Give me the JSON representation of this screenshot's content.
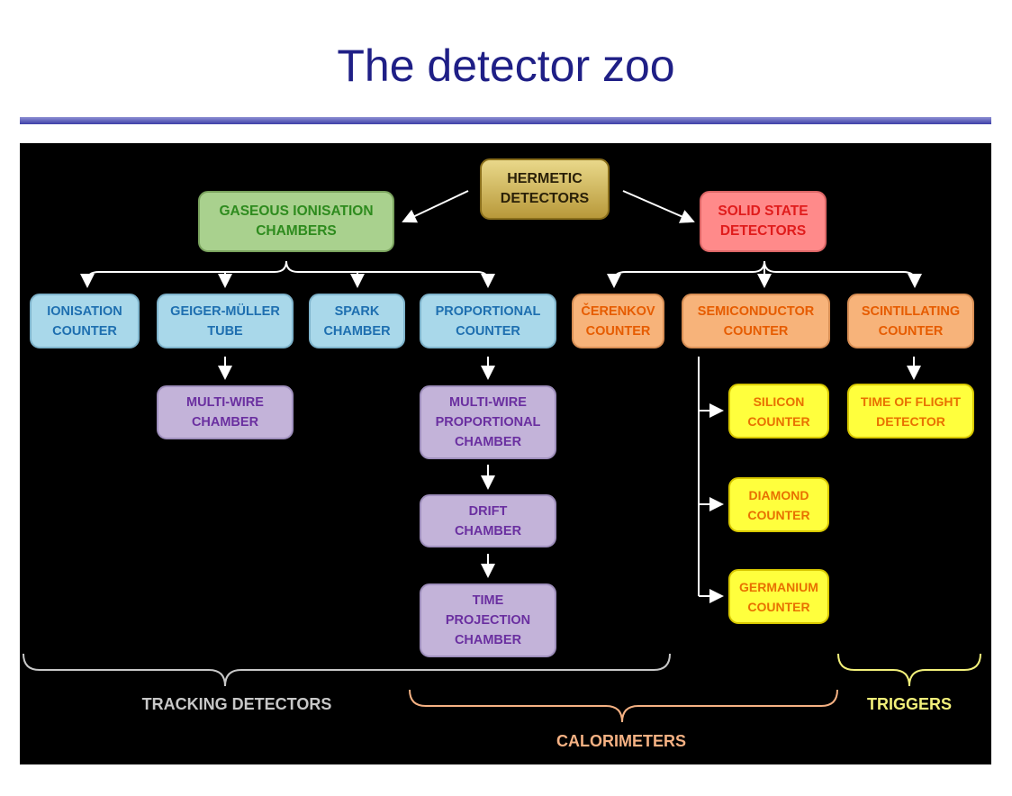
{
  "title": "The detector zoo",
  "nodes": {
    "hermetic": "HERMETIC\nDETECTORS",
    "gaseous": "GASEOUS IONISATION\nCHAMBERS",
    "solid": "SOLID STATE\nDETECTORS",
    "ionisation": "IONISATION\nCOUNTER",
    "geiger": "GEIGER-MÜLLER\nTUBE",
    "spark": "SPARK\nCHAMBER",
    "proportional": "PROPORTIONAL\nCOUNTER",
    "cerenkov": "ČERENKOV\nCOUNTER",
    "semiconductor": "SEMICONDUCTOR\nCOUNTER",
    "scintillating": "SCINTILLATING\nCOUNTER",
    "mwc": "MULTI-WIRE\nCHAMBER",
    "mwpc": "MULTI-WIRE\nPROPORTIONAL\nCHAMBER",
    "drift": "DRIFT\nCHAMBER",
    "tpc": "TIME\nPROJECTION\nCHAMBER",
    "silicon": "SILICON\nCOUNTER",
    "diamond": "DIAMOND\nCOUNTER",
    "germanium": "GERMANIUM\nCOUNTER",
    "tof": "TIME OF FLIGHT\nDETECTOR"
  },
  "categories": {
    "tracking": "TRACKING DETECTORS",
    "calorimeters": "CALORIMETERS",
    "triggers": "TRIGGERS"
  },
  "colors": {
    "title": "#1f1f86",
    "tracking": "#c8c8c8",
    "calorimeters": "#f5b183",
    "triggers": "#f2f07a"
  }
}
